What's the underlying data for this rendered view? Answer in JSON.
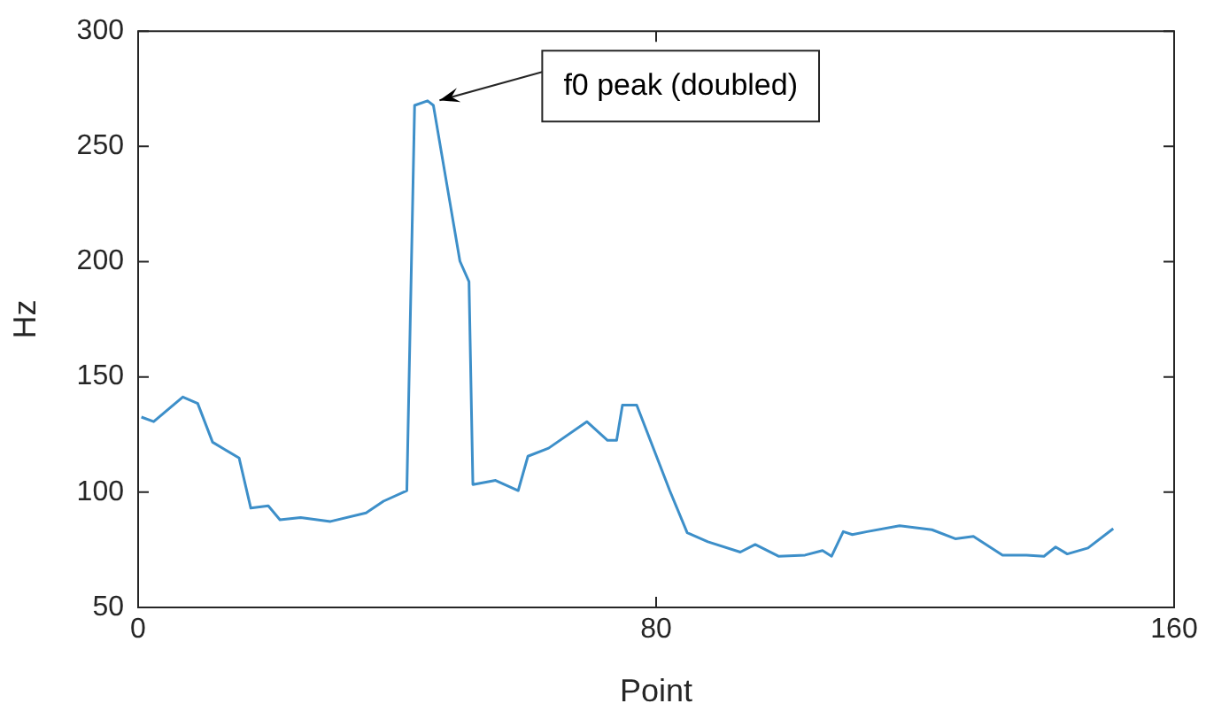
{
  "chart_data": {
    "type": "line",
    "xlabel": "Point",
    "ylabel": "Hz",
    "x": [
      0.5,
      2.4,
      6.9,
      9.2,
      11.5,
      15.6,
      17.4,
      20.1,
      21.9,
      25.1,
      29.7,
      35.2,
      37.9,
      41.5,
      42.7,
      44.7,
      45.6,
      49.7,
      51.1,
      51.7,
      55.2,
      58.7,
      60.2,
      63.4,
      69.3,
      72.5,
      73.9,
      74.8,
      77,
      82.1,
      84.8,
      88,
      93,
      95.3,
      98.9,
      103,
      105.7,
      107.1,
      108.9,
      110.3,
      112.6,
      117.6,
      122.6,
      126.2,
      129,
      133.5,
      137.2,
      139.9,
      141.7,
      143.5,
      146.7,
      150.6
    ],
    "series": [
      {
        "color": "#3d8fc9",
        "values": [
          132.6,
          130.6,
          141.3,
          138.5,
          121.7,
          114.8,
          93.1,
          94.1,
          88,
          89,
          87.3,
          91,
          96.1,
          100.7,
          267.8,
          269.8,
          267.8,
          200.2,
          191.3,
          103.3,
          105.1,
          100.7,
          115.6,
          119.1,
          130.6,
          122.5,
          122.5,
          137.8,
          137.8,
          100.7,
          82.4,
          78.5,
          74,
          77.3,
          72.2,
          72.7,
          74.7,
          72.2,
          82.9,
          81.6,
          82.9,
          85.4,
          83.7,
          79.8,
          80.8,
          72.7,
          72.7,
          72.2,
          76.2,
          73.2,
          75.8,
          84.2
        ]
      }
    ],
    "xlim": [
      0,
      160
    ],
    "xticks": [
      0,
      80,
      160
    ],
    "ylim": [
      50,
      300
    ],
    "yticks": [
      50,
      100,
      150,
      200,
      250,
      300
    ],
    "grid": false,
    "legend": false,
    "marker": "none",
    "line_style": "solid",
    "annotations": [
      {
        "text": "f0 peak (doubled)",
        "x": 46,
        "y": 270
      }
    ]
  }
}
